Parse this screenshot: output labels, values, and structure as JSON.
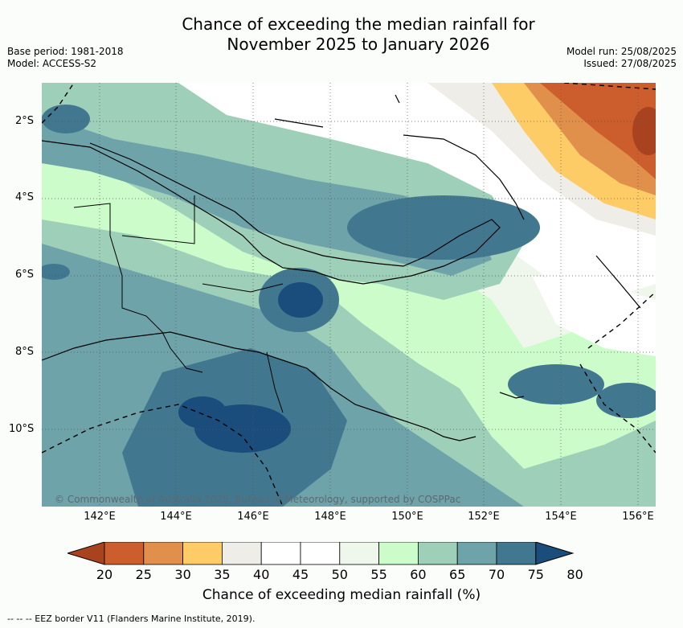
{
  "header": {
    "title_line1": "Chance of exceeding the median rainfall for",
    "title_line2": "November 2025 to January 2026",
    "base_period": "Base period: 1981-2018",
    "model": "Model: ACCESS-S2",
    "model_run": "Model run: 25/08/2025",
    "issued": "Issued: 27/08/2025"
  },
  "map": {
    "lat_labels": [
      "2°S",
      "4°S",
      "6°S",
      "8°S",
      "10°S"
    ],
    "lon_labels": [
      "142°E",
      "144°E",
      "146°E",
      "148°E",
      "150°E",
      "152°E",
      "154°E",
      "156°E"
    ],
    "credit": "© Commonwealth of Australia 2025, Bureau of Meteorology, supported by COSPPac"
  },
  "colorbar": {
    "ticks": [
      "20",
      "25",
      "30",
      "35",
      "40",
      "45",
      "50",
      "55",
      "60",
      "65",
      "70",
      "75",
      "80"
    ],
    "colors": [
      "#a9431f",
      "#cb5e2c",
      "#e0904a",
      "#fdcc66",
      "#efede8",
      "#ffffff",
      "#ffffff",
      "#eff7ed",
      "#ccfcca",
      "#9ecfb8",
      "#6ea3aa",
      "#42788f",
      "#1a4c7c"
    ],
    "label": "Chance of exceeding median rainfall (%)"
  },
  "footer": {
    "text": "-- -- -- EEZ border V11 (Flanders Marine Institute, 2019)."
  }
}
